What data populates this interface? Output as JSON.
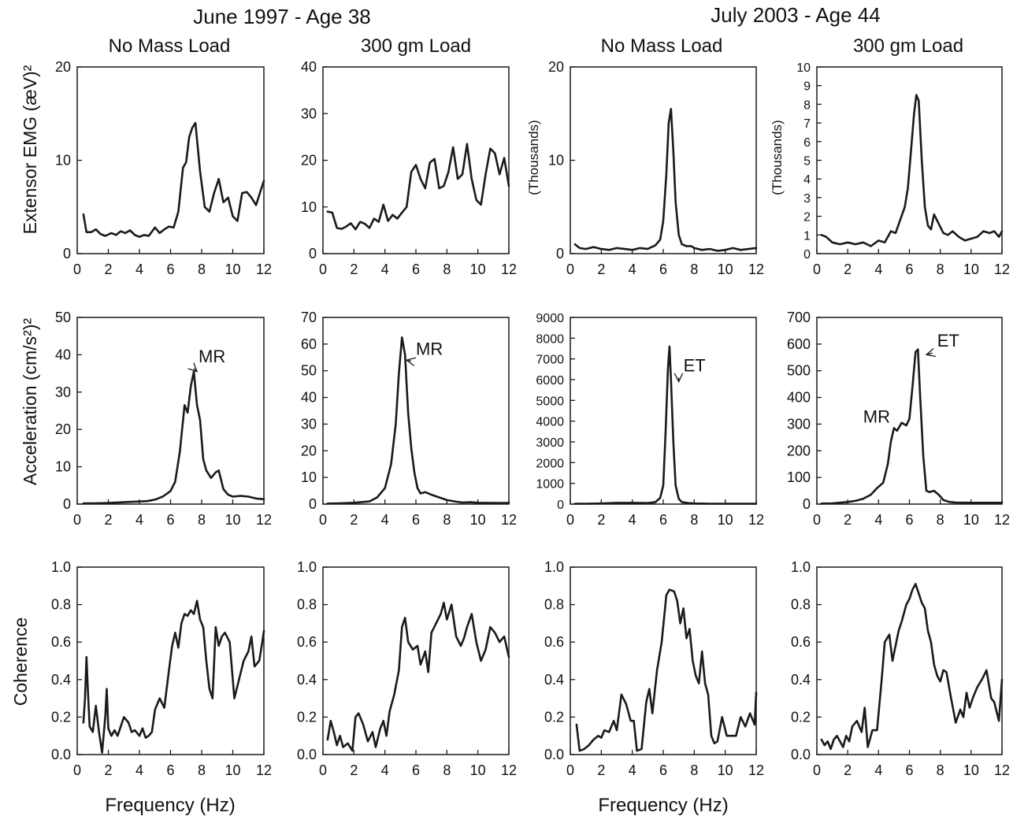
{
  "group_titles": [
    "June 1997 - Age 38",
    "July 2003 - Age 44"
  ],
  "column_titles": [
    "No Mass Load",
    "300 gm Load",
    "No Mass Load",
    "300 gm Load"
  ],
  "row_labels": {
    "emg": "Extensor EMG  (æV)²",
    "acc": "Acceleration  (cm/s²)²",
    "coh": "Coherence"
  },
  "thousands_label": "(Thousands)",
  "x_axis_label": "Frequency (Hz)",
  "colors": {
    "line": "#1a1a1a",
    "background": "#ffffff"
  },
  "chart_data": [
    {
      "type": "line",
      "row": "emg",
      "col": 0,
      "xlim": [
        0,
        12
      ],
      "ylim": [
        0,
        20
      ],
      "xticks": [
        0,
        2,
        4,
        6,
        8,
        10,
        12
      ],
      "yticks": [
        0,
        10,
        20
      ],
      "x": [
        0.4,
        0.6,
        0.9,
        1.2,
        1.5,
        1.8,
        2.2,
        2.5,
        2.8,
        3.1,
        3.4,
        3.7,
        4.0,
        4.3,
        4.6,
        5.0,
        5.3,
        5.6,
        5.9,
        6.2,
        6.5,
        6.8,
        7.0,
        7.2,
        7.4,
        7.6,
        7.9,
        8.2,
        8.5,
        8.8,
        9.1,
        9.4,
        9.7,
        10.0,
        10.3,
        10.6,
        10.9,
        11.2,
        11.5,
        11.8,
        12.0
      ],
      "y": [
        4.2,
        2.3,
        2.3,
        2.6,
        2.1,
        1.9,
        2.2,
        2.0,
        2.4,
        2.2,
        2.5,
        2.0,
        1.8,
        2.0,
        1.9,
        2.8,
        2.2,
        2.6,
        2.9,
        2.8,
        4.5,
        9.2,
        9.8,
        12.5,
        13.5,
        14.0,
        8.8,
        5.0,
        4.5,
        6.5,
        8.0,
        5.5,
        6.0,
        4.0,
        3.5,
        6.5,
        6.6,
        6.0,
        5.2,
        6.8,
        7.8
      ],
      "annotations": []
    },
    {
      "type": "line",
      "row": "emg",
      "col": 1,
      "xlim": [
        0,
        12
      ],
      "ylim": [
        0,
        40
      ],
      "xticks": [
        0,
        2,
        4,
        6,
        8,
        10,
        12
      ],
      "yticks": [
        0,
        10,
        20,
        30,
        40
      ],
      "x": [
        0.3,
        0.6,
        0.9,
        1.2,
        1.5,
        1.8,
        2.1,
        2.4,
        2.7,
        3.0,
        3.3,
        3.6,
        3.9,
        4.2,
        4.5,
        4.8,
        5.1,
        5.4,
        5.7,
        6.0,
        6.3,
        6.6,
        6.9,
        7.2,
        7.5,
        7.8,
        8.1,
        8.4,
        8.7,
        9.0,
        9.3,
        9.6,
        9.9,
        10.2,
        10.5,
        10.8,
        11.1,
        11.4,
        11.7,
        12.0
      ],
      "y": [
        9.0,
        8.8,
        5.5,
        5.3,
        5.8,
        6.5,
        5.2,
        6.8,
        6.4,
        5.5,
        7.5,
        6.8,
        10.5,
        7.0,
        8.3,
        7.5,
        8.8,
        10.0,
        17.5,
        19.0,
        16.0,
        14.0,
        19.5,
        20.3,
        14.0,
        14.5,
        17.5,
        22.8,
        16.0,
        17.0,
        23.5,
        16.0,
        11.5,
        10.5,
        17.0,
        22.5,
        21.5,
        17.0,
        20.5,
        14.5
      ],
      "annotations": []
    },
    {
      "type": "line",
      "row": "emg",
      "col": 2,
      "xlim": [
        0,
        12
      ],
      "ylim": [
        0,
        20
      ],
      "xticks": [
        0,
        2,
        4,
        6,
        8,
        10,
        12
      ],
      "yticks": [
        0,
        10,
        20
      ],
      "x": [
        0.3,
        0.6,
        1.0,
        1.5,
        2.0,
        2.5,
        3.0,
        3.5,
        4.0,
        4.5,
        5.0,
        5.5,
        5.8,
        6.0,
        6.2,
        6.35,
        6.5,
        6.65,
        6.8,
        7.0,
        7.2,
        7.5,
        7.8,
        8.0,
        8.5,
        9.0,
        9.5,
        10.0,
        10.5,
        11.0,
        11.5,
        12.0
      ],
      "y": [
        1.0,
        0.6,
        0.5,
        0.7,
        0.5,
        0.4,
        0.6,
        0.5,
        0.4,
        0.6,
        0.5,
        0.9,
        1.5,
        3.5,
        8.5,
        14.0,
        15.5,
        11.0,
        5.5,
        2.0,
        1.0,
        0.8,
        0.8,
        0.6,
        0.4,
        0.5,
        0.3,
        0.4,
        0.6,
        0.4,
        0.5,
        0.6
      ],
      "annotations": []
    },
    {
      "type": "line",
      "row": "emg",
      "col": 3,
      "xlim": [
        0,
        12
      ],
      "ylim": [
        0,
        10
      ],
      "xticks": [
        0,
        2,
        4,
        6,
        8,
        10,
        12
      ],
      "yticks": [
        0,
        1,
        2,
        3,
        4,
        5,
        6,
        7,
        8,
        9,
        10
      ],
      "x": [
        0.3,
        0.6,
        1.0,
        1.5,
        2.0,
        2.5,
        3.0,
        3.5,
        4.0,
        4.4,
        4.8,
        5.1,
        5.4,
        5.7,
        5.9,
        6.1,
        6.3,
        6.45,
        6.6,
        6.8,
        7.0,
        7.2,
        7.4,
        7.6,
        7.9,
        8.2,
        8.5,
        8.8,
        9.2,
        9.6,
        10.0,
        10.4,
        10.8,
        11.2,
        11.5,
        11.8,
        12.0
      ],
      "y": [
        1.0,
        0.9,
        0.6,
        0.5,
        0.6,
        0.5,
        0.6,
        0.4,
        0.7,
        0.6,
        1.2,
        1.1,
        1.8,
        2.5,
        3.5,
        5.5,
        7.5,
        8.5,
        8.2,
        5.0,
        2.5,
        1.5,
        1.3,
        2.1,
        1.6,
        1.1,
        1.0,
        1.2,
        0.9,
        0.7,
        0.8,
        0.9,
        1.2,
        1.1,
        1.2,
        0.9,
        1.2
      ],
      "annotations": []
    },
    {
      "type": "line",
      "row": "acc",
      "col": 0,
      "xlim": [
        0,
        12
      ],
      "ylim": [
        0,
        50
      ],
      "xticks": [
        0,
        2,
        4,
        6,
        8,
        10,
        12
      ],
      "yticks": [
        0,
        10,
        20,
        30,
        40,
        50
      ],
      "x": [
        0.4,
        1.0,
        2.0,
        3.0,
        4.0,
        4.5,
        5.0,
        5.5,
        6.0,
        6.3,
        6.6,
        6.9,
        7.1,
        7.3,
        7.5,
        7.7,
        7.9,
        8.1,
        8.3,
        8.6,
        8.9,
        9.1,
        9.4,
        9.7,
        10.0,
        10.5,
        11.0,
        11.5,
        12.0
      ],
      "y": [
        0.2,
        0.2,
        0.3,
        0.5,
        0.7,
        0.8,
        1.2,
        2.0,
        3.5,
        6.0,
        14.0,
        26.5,
        24.5,
        31.5,
        35.5,
        26.5,
        22.5,
        12.0,
        9.0,
        7.0,
        8.5,
        9.0,
        4.0,
        2.5,
        2.0,
        2.2,
        2.0,
        1.5,
        1.3
      ],
      "annotations": [
        {
          "text": "MR",
          "tx": 7.8,
          "ty": 38,
          "arrow_to": [
            7.7,
            35.5
          ]
        }
      ]
    },
    {
      "type": "line",
      "row": "acc",
      "col": 1,
      "xlim": [
        0,
        12
      ],
      "ylim": [
        0,
        70
      ],
      "xticks": [
        0,
        2,
        4,
        6,
        8,
        10,
        12
      ],
      "yticks": [
        0,
        10,
        20,
        30,
        40,
        50,
        60,
        70
      ],
      "x": [
        0.3,
        1.0,
        2.0,
        3.0,
        3.5,
        4.0,
        4.4,
        4.7,
        4.9,
        5.1,
        5.3,
        5.5,
        5.7,
        5.9,
        6.1,
        6.3,
        6.6,
        7.0,
        7.5,
        8.0,
        8.5,
        9.0,
        9.5,
        10.0,
        11.0,
        12.0
      ],
      "y": [
        0.2,
        0.3,
        0.5,
        1.0,
        2.5,
        6.0,
        15.0,
        30.0,
        49.0,
        62.5,
        56.0,
        34.0,
        21.0,
        12.0,
        6.0,
        4.0,
        4.5,
        3.5,
        2.5,
        1.5,
        1.0,
        0.6,
        0.7,
        0.5,
        0.4,
        0.4
      ],
      "annotations": [
        {
          "text": "MR",
          "tx": 6.0,
          "ty": 56,
          "arrow_to": [
            5.4,
            54
          ]
        }
      ]
    },
    {
      "type": "line",
      "row": "acc",
      "col": 2,
      "xlim": [
        0,
        12
      ],
      "ylim": [
        0,
        9000
      ],
      "xticks": [
        0,
        2,
        4,
        6,
        8,
        10,
        12
      ],
      "yticks": [
        0,
        1000,
        2000,
        3000,
        4000,
        5000,
        6000,
        7000,
        8000,
        9000
      ],
      "x": [
        0.3,
        1.0,
        2.0,
        3.0,
        4.0,
        5.0,
        5.5,
        5.8,
        6.0,
        6.15,
        6.3,
        6.4,
        6.5,
        6.65,
        6.8,
        7.0,
        7.2,
        7.6,
        8.0,
        9.0,
        10.0,
        11.0,
        12.0
      ],
      "y": [
        20,
        20,
        30,
        60,
        60,
        50,
        100,
        300,
        900,
        3500,
        6500,
        7600,
        6000,
        3000,
        900,
        250,
        100,
        50,
        30,
        20,
        20,
        20,
        20
      ],
      "annotations": [
        {
          "text": "ET",
          "tx": 7.3,
          "ty": 6400,
          "arrow_to": [
            7.0,
            5900
          ]
        }
      ]
    },
    {
      "type": "line",
      "row": "acc",
      "col": 3,
      "xlim": [
        0,
        12
      ],
      "ylim": [
        0,
        700
      ],
      "xticks": [
        0,
        2,
        4,
        6,
        8,
        10,
        12
      ],
      "yticks": [
        0,
        100,
        200,
        300,
        400,
        500,
        600,
        700
      ],
      "x": [
        0.3,
        1.0,
        2.0,
        2.5,
        3.0,
        3.5,
        3.9,
        4.3,
        4.6,
        4.8,
        5.0,
        5.2,
        5.5,
        5.8,
        6.0,
        6.2,
        6.4,
        6.55,
        6.7,
        6.9,
        7.1,
        7.3,
        7.6,
        7.9,
        8.2,
        8.6,
        9.0,
        10.0,
        11.0,
        12.0
      ],
      "y": [
        2,
        3,
        8,
        12,
        20,
        35,
        60,
        80,
        150,
        235,
        285,
        275,
        305,
        295,
        320,
        440,
        570,
        580,
        400,
        180,
        50,
        45,
        50,
        35,
        15,
        8,
        6,
        5,
        5,
        5
      ],
      "annotations": [
        {
          "text": "ET",
          "tx": 7.8,
          "ty": 590,
          "arrow_to": [
            7.1,
            560
          ]
        },
        {
          "text": "MR",
          "tx": 3.0,
          "ty": 305,
          "arrow_to": null
        }
      ]
    },
    {
      "type": "line",
      "row": "coh",
      "col": 0,
      "xlim": [
        0,
        12
      ],
      "ylim": [
        0,
        1
      ],
      "xticks": [
        0,
        2,
        4,
        6,
        8,
        10,
        12
      ],
      "yticks": [
        0.0,
        0.2,
        0.4,
        0.6,
        0.8,
        1.0
      ],
      "x": [
        0.4,
        0.5,
        0.6,
        0.7,
        0.8,
        1.0,
        1.2,
        1.4,
        1.6,
        1.8,
        1.9,
        2.0,
        2.2,
        2.4,
        2.6,
        2.8,
        3.0,
        3.3,
        3.5,
        3.7,
        4.0,
        4.2,
        4.4,
        4.6,
        4.8,
        5.0,
        5.3,
        5.6,
        5.9,
        6.1,
        6.3,
        6.5,
        6.7,
        6.9,
        7.1,
        7.3,
        7.5,
        7.7,
        7.9,
        8.1,
        8.3,
        8.5,
        8.7,
        8.9,
        9.1,
        9.3,
        9.5,
        9.8,
        10.1,
        10.4,
        10.7,
        11.0,
        11.2,
        11.4,
        11.7,
        11.9,
        12.0
      ],
      "y": [
        0.17,
        0.3,
        0.52,
        0.32,
        0.15,
        0.12,
        0.26,
        0.12,
        0.01,
        0.2,
        0.35,
        0.14,
        0.1,
        0.13,
        0.1,
        0.15,
        0.2,
        0.17,
        0.12,
        0.13,
        0.1,
        0.14,
        0.09,
        0.1,
        0.12,
        0.24,
        0.3,
        0.25,
        0.45,
        0.58,
        0.65,
        0.57,
        0.7,
        0.75,
        0.74,
        0.77,
        0.75,
        0.82,
        0.72,
        0.68,
        0.5,
        0.35,
        0.3,
        0.68,
        0.58,
        0.63,
        0.65,
        0.6,
        0.3,
        0.4,
        0.5,
        0.55,
        0.63,
        0.47,
        0.5,
        0.6,
        0.66
      ],
      "annotations": []
    },
    {
      "type": "line",
      "row": "coh",
      "col": 1,
      "xlim": [
        0,
        12
      ],
      "ylim": [
        0,
        1
      ],
      "xticks": [
        0,
        2,
        4,
        6,
        8,
        10,
        12
      ],
      "yticks": [
        0.0,
        0.2,
        0.4,
        0.6,
        0.8,
        1.0
      ],
      "x": [
        0.3,
        0.5,
        0.7,
        0.9,
        1.1,
        1.3,
        1.6,
        1.9,
        2.1,
        2.3,
        2.6,
        2.9,
        3.2,
        3.4,
        3.7,
        3.9,
        4.1,
        4.3,
        4.6,
        4.9,
        5.1,
        5.3,
        5.5,
        5.8,
        6.1,
        6.3,
        6.6,
        6.8,
        7.0,
        7.3,
        7.6,
        7.8,
        8.0,
        8.3,
        8.6,
        8.9,
        9.1,
        9.3,
        9.6,
        9.9,
        10.2,
        10.5,
        10.8,
        11.1,
        11.4,
        11.7,
        12.0
      ],
      "y": [
        0.08,
        0.18,
        0.12,
        0.05,
        0.1,
        0.04,
        0.06,
        0.02,
        0.2,
        0.22,
        0.16,
        0.07,
        0.12,
        0.04,
        0.14,
        0.18,
        0.1,
        0.23,
        0.32,
        0.45,
        0.68,
        0.73,
        0.6,
        0.56,
        0.58,
        0.48,
        0.55,
        0.44,
        0.65,
        0.7,
        0.75,
        0.81,
        0.72,
        0.8,
        0.63,
        0.58,
        0.62,
        0.68,
        0.75,
        0.6,
        0.5,
        0.56,
        0.68,
        0.65,
        0.6,
        0.63,
        0.52
      ],
      "annotations": []
    },
    {
      "type": "line",
      "row": "coh",
      "col": 2,
      "xlim": [
        0,
        12
      ],
      "ylim": [
        0,
        1
      ],
      "xticks": [
        0,
        2,
        4,
        6,
        8,
        10,
        12
      ],
      "yticks": [
        0.0,
        0.2,
        0.4,
        0.6,
        0.8,
        1.0
      ],
      "x": [
        0.4,
        0.6,
        0.9,
        1.2,
        1.5,
        1.8,
        2.0,
        2.2,
        2.5,
        2.8,
        3.0,
        3.3,
        3.6,
        3.9,
        4.1,
        4.3,
        4.6,
        4.9,
        5.1,
        5.3,
        5.6,
        5.9,
        6.2,
        6.4,
        6.7,
        6.9,
        7.1,
        7.3,
        7.5,
        7.7,
        7.9,
        8.1,
        8.3,
        8.5,
        8.7,
        8.9,
        9.1,
        9.3,
        9.5,
        9.8,
        10.1,
        10.4,
        10.7,
        11.0,
        11.3,
        11.6,
        11.9,
        12.0
      ],
      "y": [
        0.16,
        0.02,
        0.03,
        0.05,
        0.08,
        0.1,
        0.09,
        0.13,
        0.12,
        0.18,
        0.13,
        0.32,
        0.27,
        0.18,
        0.18,
        0.02,
        0.03,
        0.28,
        0.35,
        0.22,
        0.45,
        0.6,
        0.85,
        0.88,
        0.87,
        0.82,
        0.7,
        0.78,
        0.62,
        0.67,
        0.5,
        0.42,
        0.38,
        0.55,
        0.38,
        0.32,
        0.1,
        0.06,
        0.07,
        0.2,
        0.1,
        0.1,
        0.1,
        0.2,
        0.15,
        0.22,
        0.16,
        0.33
      ],
      "annotations": []
    },
    {
      "type": "line",
      "row": "coh",
      "col": 3,
      "xlim": [
        0,
        12
      ],
      "ylim": [
        0,
        1
      ],
      "xticks": [
        0,
        2,
        4,
        6,
        8,
        10,
        12
      ],
      "yticks": [
        0.0,
        0.2,
        0.4,
        0.6,
        0.8,
        1.0
      ],
      "x": [
        0.3,
        0.5,
        0.7,
        0.9,
        1.1,
        1.3,
        1.5,
        1.7,
        1.9,
        2.1,
        2.3,
        2.6,
        2.9,
        3.1,
        3.3,
        3.6,
        3.9,
        4.2,
        4.4,
        4.7,
        4.9,
        5.1,
        5.3,
        5.5,
        5.8,
        6.0,
        6.2,
        6.4,
        6.6,
        6.8,
        7.0,
        7.2,
        7.4,
        7.6,
        7.8,
        8.0,
        8.2,
        8.4,
        8.7,
        9.0,
        9.3,
        9.5,
        9.7,
        9.9,
        10.1,
        10.4,
        10.7,
        11.0,
        11.3,
        11.5,
        11.8,
        12.0
      ],
      "y": [
        0.08,
        0.05,
        0.07,
        0.03,
        0.08,
        0.1,
        0.07,
        0.04,
        0.1,
        0.07,
        0.15,
        0.18,
        0.12,
        0.25,
        0.04,
        0.13,
        0.13,
        0.4,
        0.6,
        0.64,
        0.5,
        0.58,
        0.66,
        0.71,
        0.8,
        0.83,
        0.88,
        0.91,
        0.86,
        0.81,
        0.78,
        0.66,
        0.6,
        0.48,
        0.42,
        0.39,
        0.45,
        0.44,
        0.3,
        0.17,
        0.24,
        0.2,
        0.33,
        0.25,
        0.3,
        0.36,
        0.4,
        0.45,
        0.3,
        0.28,
        0.18,
        0.4
      ],
      "annotations": []
    }
  ]
}
